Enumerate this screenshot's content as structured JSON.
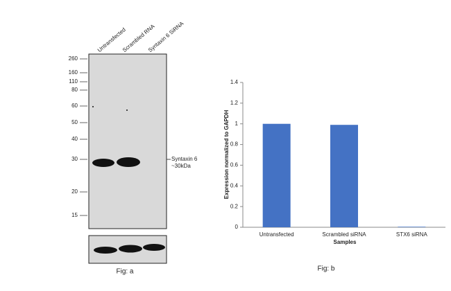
{
  "blot": {
    "lanes": [
      "Untransfected",
      "Scrambled RNA",
      "Syntaxin 6 SiRNA"
    ],
    "markers": [
      260,
      160,
      110,
      80,
      60,
      50,
      40,
      30,
      20,
      15
    ],
    "band_label": [
      "Syntaxin 6",
      "~30kDa"
    ],
    "caption": "Fig: a"
  },
  "chart_data": {
    "type": "bar",
    "categories": [
      "Untransfected",
      "Scrambled siRNA",
      "STX6 siRNA"
    ],
    "values": [
      1,
      0.99,
      0.005
    ],
    "color": "#4472c4",
    "ylim": [
      0,
      1.4
    ],
    "yticks": [
      0,
      0.2,
      0.4,
      0.6,
      0.8,
      1,
      1.2,
      1.4
    ],
    "xlabel": "Samples",
    "ylabel": "Expression normalized to GAPDH",
    "grid": false,
    "caption": "Fig: b"
  }
}
